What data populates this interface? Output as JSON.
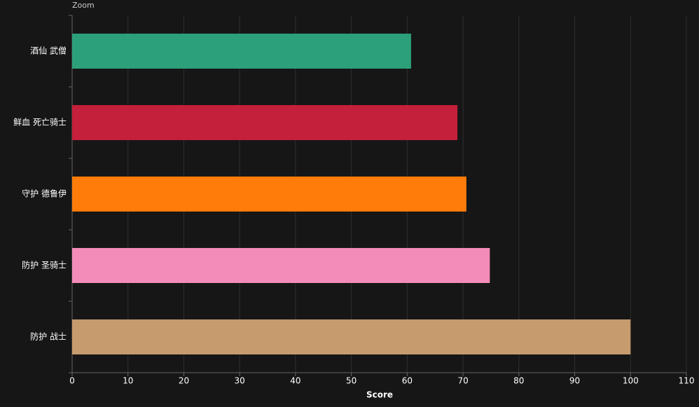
{
  "zoom_button": "Zoom",
  "chart_data": {
    "type": "bar",
    "orientation": "horizontal",
    "xlabel": "Score",
    "categories": [
      "酒仙 武僧",
      "鲜血 死亡骑士",
      "守护 德鲁伊",
      "防护 圣骑士",
      "防护 战士"
    ],
    "values": [
      60.7,
      69.0,
      70.6,
      74.8,
      100
    ],
    "colors": [
      "#2ca07a",
      "#c41f3b",
      "#ff7c0a",
      "#f48cba",
      "#c69b6d"
    ],
    "xlim": [
      0,
      110
    ],
    "xticks": [
      0,
      10,
      20,
      30,
      40,
      50,
      60,
      70,
      80,
      90,
      100,
      110
    ],
    "grid": true
  }
}
